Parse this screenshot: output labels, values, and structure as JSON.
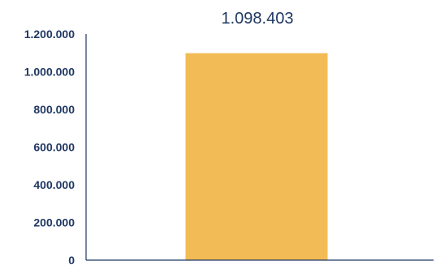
{
  "chart_data": {
    "type": "bar",
    "categories": [
      ""
    ],
    "values": [
      1098403
    ],
    "data_labels": [
      "1.098.403"
    ],
    "ylim": [
      0,
      1200000
    ],
    "yticks": [
      0,
      200000,
      400000,
      600000,
      800000,
      1000000,
      1200000
    ],
    "ytick_labels": [
      "0",
      "200.000",
      "400.000",
      "600.000",
      "800.000",
      "1.000.000",
      "1.200.000"
    ],
    "title": "",
    "xlabel": "",
    "ylabel": "",
    "grid": false,
    "legend": "none",
    "colors": {
      "bar": "#F2BB55",
      "axis": "#1f3864",
      "text": "#1f3864"
    }
  }
}
